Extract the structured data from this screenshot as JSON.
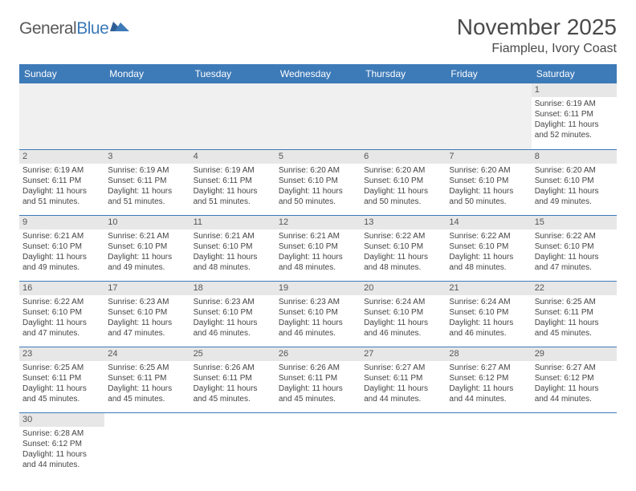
{
  "logo": {
    "text1": "General",
    "text2": "Blue"
  },
  "title": "November 2025",
  "location": "Fiampleu, Ivory Coast",
  "colors": {
    "header_bg": "#3d7ab8",
    "header_text": "#ffffff",
    "daynum_bg": "#e7e7e7",
    "border": "#3d7ab8",
    "logo_gray": "#5a5a5a",
    "logo_blue": "#3d7ab8"
  },
  "day_headers": [
    "Sunday",
    "Monday",
    "Tuesday",
    "Wednesday",
    "Thursday",
    "Friday",
    "Saturday"
  ],
  "weeks": [
    [
      null,
      null,
      null,
      null,
      null,
      null,
      {
        "n": "1",
        "sr": "6:19 AM",
        "ss": "6:11 PM",
        "dl": "11 hours and 52 minutes."
      }
    ],
    [
      {
        "n": "2",
        "sr": "6:19 AM",
        "ss": "6:11 PM",
        "dl": "11 hours and 51 minutes."
      },
      {
        "n": "3",
        "sr": "6:19 AM",
        "ss": "6:11 PM",
        "dl": "11 hours and 51 minutes."
      },
      {
        "n": "4",
        "sr": "6:19 AM",
        "ss": "6:11 PM",
        "dl": "11 hours and 51 minutes."
      },
      {
        "n": "5",
        "sr": "6:20 AM",
        "ss": "6:10 PM",
        "dl": "11 hours and 50 minutes."
      },
      {
        "n": "6",
        "sr": "6:20 AM",
        "ss": "6:10 PM",
        "dl": "11 hours and 50 minutes."
      },
      {
        "n": "7",
        "sr": "6:20 AM",
        "ss": "6:10 PM",
        "dl": "11 hours and 50 minutes."
      },
      {
        "n": "8",
        "sr": "6:20 AM",
        "ss": "6:10 PM",
        "dl": "11 hours and 49 minutes."
      }
    ],
    [
      {
        "n": "9",
        "sr": "6:21 AM",
        "ss": "6:10 PM",
        "dl": "11 hours and 49 minutes."
      },
      {
        "n": "10",
        "sr": "6:21 AM",
        "ss": "6:10 PM",
        "dl": "11 hours and 49 minutes."
      },
      {
        "n": "11",
        "sr": "6:21 AM",
        "ss": "6:10 PM",
        "dl": "11 hours and 48 minutes."
      },
      {
        "n": "12",
        "sr": "6:21 AM",
        "ss": "6:10 PM",
        "dl": "11 hours and 48 minutes."
      },
      {
        "n": "13",
        "sr": "6:22 AM",
        "ss": "6:10 PM",
        "dl": "11 hours and 48 minutes."
      },
      {
        "n": "14",
        "sr": "6:22 AM",
        "ss": "6:10 PM",
        "dl": "11 hours and 48 minutes."
      },
      {
        "n": "15",
        "sr": "6:22 AM",
        "ss": "6:10 PM",
        "dl": "11 hours and 47 minutes."
      }
    ],
    [
      {
        "n": "16",
        "sr": "6:22 AM",
        "ss": "6:10 PM",
        "dl": "11 hours and 47 minutes."
      },
      {
        "n": "17",
        "sr": "6:23 AM",
        "ss": "6:10 PM",
        "dl": "11 hours and 47 minutes."
      },
      {
        "n": "18",
        "sr": "6:23 AM",
        "ss": "6:10 PM",
        "dl": "11 hours and 46 minutes."
      },
      {
        "n": "19",
        "sr": "6:23 AM",
        "ss": "6:10 PM",
        "dl": "11 hours and 46 minutes."
      },
      {
        "n": "20",
        "sr": "6:24 AM",
        "ss": "6:10 PM",
        "dl": "11 hours and 46 minutes."
      },
      {
        "n": "21",
        "sr": "6:24 AM",
        "ss": "6:10 PM",
        "dl": "11 hours and 46 minutes."
      },
      {
        "n": "22",
        "sr": "6:25 AM",
        "ss": "6:11 PM",
        "dl": "11 hours and 45 minutes."
      }
    ],
    [
      {
        "n": "23",
        "sr": "6:25 AM",
        "ss": "6:11 PM",
        "dl": "11 hours and 45 minutes."
      },
      {
        "n": "24",
        "sr": "6:25 AM",
        "ss": "6:11 PM",
        "dl": "11 hours and 45 minutes."
      },
      {
        "n": "25",
        "sr": "6:26 AM",
        "ss": "6:11 PM",
        "dl": "11 hours and 45 minutes."
      },
      {
        "n": "26",
        "sr": "6:26 AM",
        "ss": "6:11 PM",
        "dl": "11 hours and 45 minutes."
      },
      {
        "n": "27",
        "sr": "6:27 AM",
        "ss": "6:11 PM",
        "dl": "11 hours and 44 minutes."
      },
      {
        "n": "28",
        "sr": "6:27 AM",
        "ss": "6:12 PM",
        "dl": "11 hours and 44 minutes."
      },
      {
        "n": "29",
        "sr": "6:27 AM",
        "ss": "6:12 PM",
        "dl": "11 hours and 44 minutes."
      }
    ],
    [
      {
        "n": "30",
        "sr": "6:28 AM",
        "ss": "6:12 PM",
        "dl": "11 hours and 44 minutes."
      },
      null,
      null,
      null,
      null,
      null,
      null
    ]
  ],
  "labels": {
    "sunrise_prefix": "Sunrise: ",
    "sunset_prefix": "Sunset: ",
    "daylight_prefix": "Daylight: "
  }
}
